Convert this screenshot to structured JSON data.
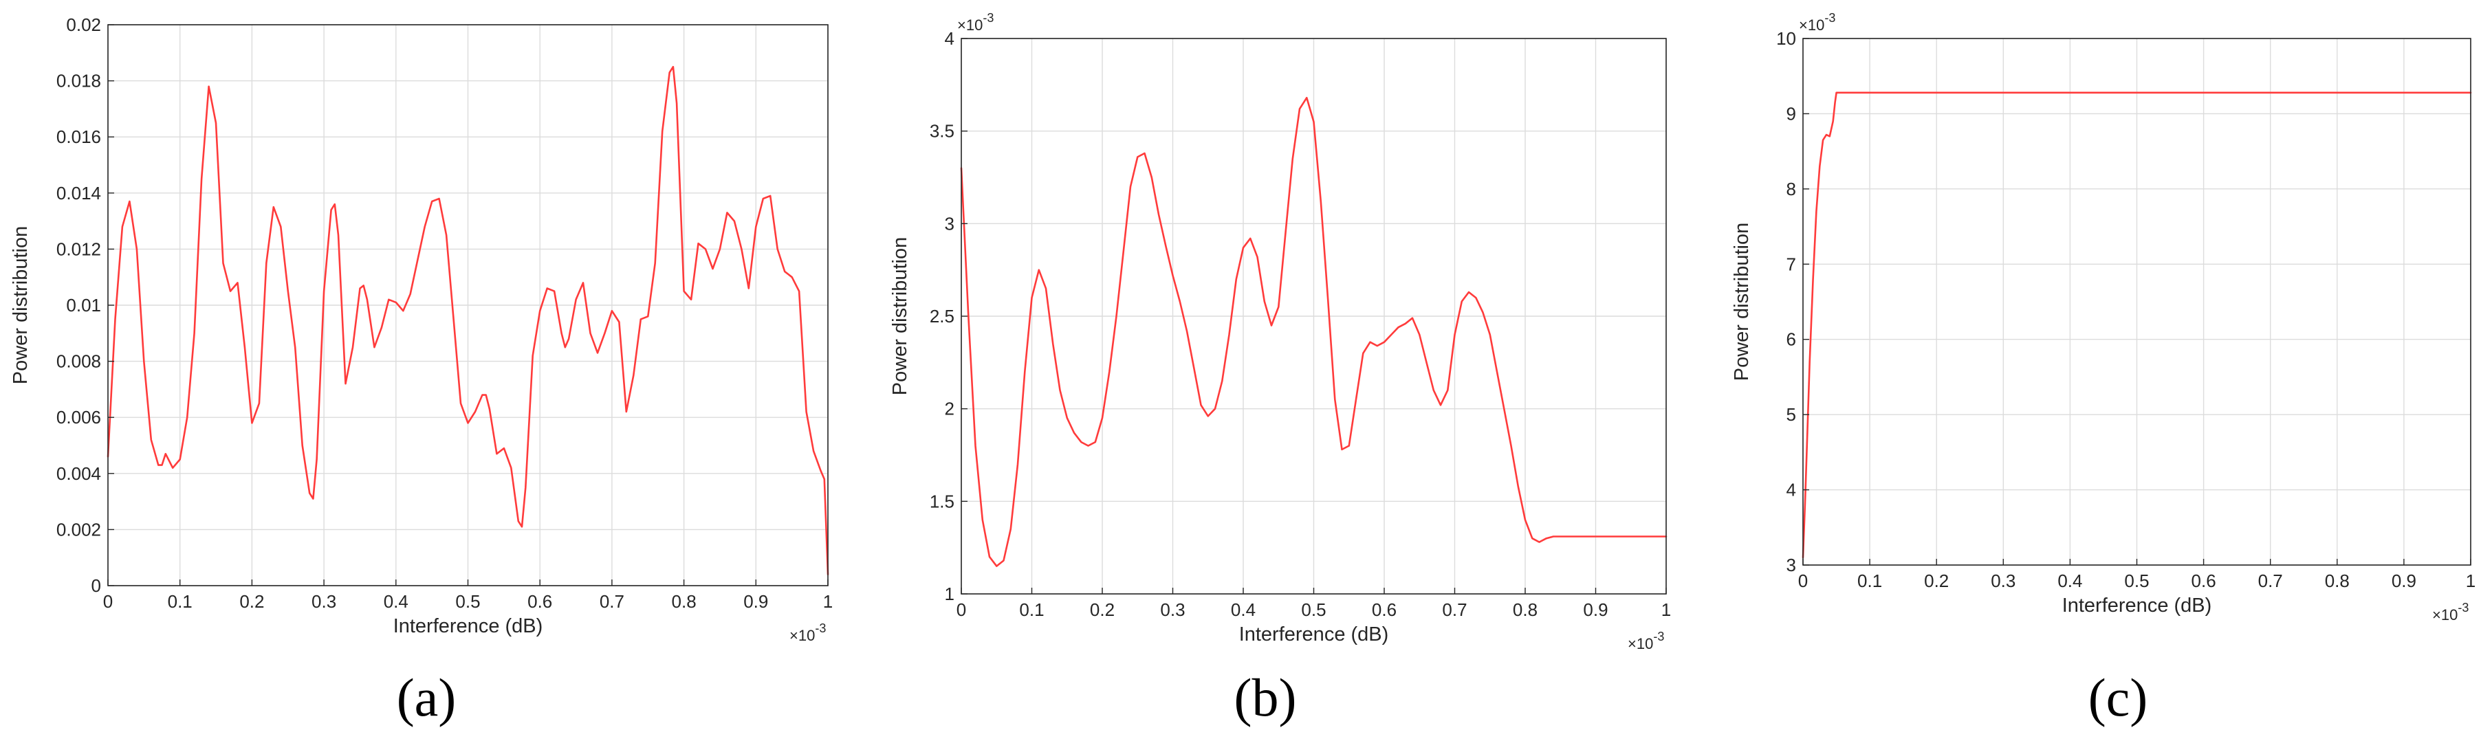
{
  "chart_data": [
    {
      "type": "line",
      "panel_label": "(a)",
      "xlabel": "Interference (dB)",
      "ylabel": "Power distribution",
      "x_exponent_label": "×10",
      "x_exponent": "-3",
      "y_exponent": "",
      "xlim": [
        0,
        1
      ],
      "ylim": [
        0,
        0.02
      ],
      "xticks": [
        "0",
        "0.1",
        "0.2",
        "0.3",
        "0.4",
        "0.5",
        "0.6",
        "0.7",
        "0.8",
        "0.9",
        "1"
      ],
      "yticks": [
        "0",
        "0.002",
        "0.004",
        "0.006",
        "0.008",
        "0.01",
        "0.012",
        "0.014",
        "0.016",
        "0.018",
        "0.02"
      ],
      "grid": true,
      "line_color": "#ff3b3b",
      "series": [
        {
          "x": [
            0,
            0.01,
            0.02,
            0.03,
            0.04,
            0.05,
            0.06,
            0.07,
            0.075,
            0.08,
            0.09,
            0.1,
            0.11,
            0.12,
            0.13,
            0.14,
            0.15,
            0.16,
            0.17,
            0.18,
            0.19,
            0.2,
            0.21,
            0.22,
            0.23,
            0.24,
            0.25,
            0.26,
            0.27,
            0.28,
            0.285,
            0.29,
            0.3,
            0.31,
            0.315,
            0.32,
            0.33,
            0.34,
            0.35,
            0.355,
            0.36,
            0.37,
            0.38,
            0.39,
            0.4,
            0.41,
            0.42,
            0.43,
            0.44,
            0.45,
            0.46,
            0.47,
            0.48,
            0.49,
            0.5,
            0.51,
            0.52,
            0.525,
            0.53,
            0.54,
            0.55,
            0.56,
            0.57,
            0.575,
            0.58,
            0.59,
            0.6,
            0.61,
            0.62,
            0.63,
            0.635,
            0.64,
            0.65,
            0.66,
            0.67,
            0.68,
            0.69,
            0.7,
            0.71,
            0.72,
            0.73,
            0.74,
            0.75,
            0.76,
            0.77,
            0.78,
            0.785,
            0.79,
            0.8,
            0.81,
            0.82,
            0.83,
            0.84,
            0.85,
            0.86,
            0.87,
            0.88,
            0.89,
            0.9,
            0.91,
            0.92,
            0.93,
            0.94,
            0.95,
            0.96,
            0.97,
            0.98,
            0.99,
            0.995,
            1.0
          ],
          "y": [
            0.0046,
            0.0095,
            0.0128,
            0.0137,
            0.012,
            0.008,
            0.0052,
            0.0043,
            0.0043,
            0.0047,
            0.0042,
            0.0045,
            0.006,
            0.009,
            0.0145,
            0.0178,
            0.0165,
            0.0115,
            0.0105,
            0.0108,
            0.0085,
            0.0058,
            0.0065,
            0.0115,
            0.0135,
            0.0128,
            0.0105,
            0.0085,
            0.005,
            0.0033,
            0.0031,
            0.0045,
            0.0105,
            0.0134,
            0.0136,
            0.0125,
            0.0072,
            0.0085,
            0.0106,
            0.0107,
            0.0102,
            0.0085,
            0.0092,
            0.0102,
            0.0101,
            0.0098,
            0.0104,
            0.0116,
            0.0128,
            0.0137,
            0.0138,
            0.0125,
            0.0095,
            0.0065,
            0.0058,
            0.0062,
            0.0068,
            0.0068,
            0.0063,
            0.0047,
            0.0049,
            0.0042,
            0.0023,
            0.0021,
            0.0035,
            0.0082,
            0.0098,
            0.0106,
            0.0105,
            0.009,
            0.0085,
            0.0088,
            0.0102,
            0.0108,
            0.009,
            0.0083,
            0.009,
            0.0098,
            0.0094,
            0.0062,
            0.0075,
            0.0095,
            0.0096,
            0.0115,
            0.0162,
            0.0183,
            0.0185,
            0.0172,
            0.0105,
            0.0102,
            0.0122,
            0.012,
            0.0113,
            0.012,
            0.0133,
            0.013,
            0.012,
            0.0106,
            0.0128,
            0.0138,
            0.0139,
            0.012,
            0.0112,
            0.011,
            0.0105,
            0.0062,
            0.0048,
            0.0041,
            0.0038,
            0.0004
          ]
        }
      ]
    },
    {
      "type": "line",
      "panel_label": "(b)",
      "xlabel": "Interference (dB)",
      "ylabel": "Power distribution",
      "x_exponent_label": "×10",
      "x_exponent": "-3",
      "y_exponent": "-3",
      "xlim": [
        0,
        1
      ],
      "ylim": [
        1,
        4
      ],
      "xticks": [
        "0",
        "0.1",
        "0.2",
        "0.3",
        "0.4",
        "0.5",
        "0.6",
        "0.7",
        "0.8",
        "0.9",
        "1"
      ],
      "yticks": [
        "1",
        "1.5",
        "2",
        "2.5",
        "3",
        "3.5",
        "4"
      ],
      "grid": true,
      "line_color": "#ff3b3b",
      "series": [
        {
          "x": [
            0,
            0.01,
            0.02,
            0.03,
            0.04,
            0.05,
            0.06,
            0.07,
            0.08,
            0.09,
            0.1,
            0.11,
            0.12,
            0.13,
            0.14,
            0.15,
            0.16,
            0.17,
            0.18,
            0.19,
            0.2,
            0.21,
            0.22,
            0.23,
            0.24,
            0.25,
            0.26,
            0.27,
            0.28,
            0.29,
            0.3,
            0.31,
            0.32,
            0.33,
            0.34,
            0.35,
            0.36,
            0.37,
            0.38,
            0.39,
            0.4,
            0.41,
            0.42,
            0.43,
            0.44,
            0.45,
            0.46,
            0.47,
            0.48,
            0.49,
            0.5,
            0.51,
            0.52,
            0.53,
            0.54,
            0.55,
            0.56,
            0.57,
            0.58,
            0.59,
            0.6,
            0.61,
            0.62,
            0.63,
            0.64,
            0.65,
            0.66,
            0.67,
            0.68,
            0.69,
            0.7,
            0.71,
            0.72,
            0.73,
            0.74,
            0.75,
            0.76,
            0.77,
            0.78,
            0.79,
            0.8,
            0.81,
            0.82,
            0.83,
            0.84,
            0.85,
            0.9,
            0.95,
            1.0
          ],
          "y": [
            3.3,
            2.5,
            1.8,
            1.4,
            1.2,
            1.15,
            1.18,
            1.35,
            1.7,
            2.2,
            2.6,
            2.75,
            2.65,
            2.35,
            2.1,
            1.95,
            1.87,
            1.82,
            1.8,
            1.82,
            1.95,
            2.2,
            2.5,
            2.85,
            3.2,
            3.36,
            3.38,
            3.25,
            3.05,
            2.88,
            2.72,
            2.58,
            2.42,
            2.22,
            2.02,
            1.96,
            2.0,
            2.15,
            2.4,
            2.7,
            2.87,
            2.92,
            2.82,
            2.58,
            2.45,
            2.55,
            2.95,
            3.35,
            3.62,
            3.68,
            3.55,
            3.12,
            2.6,
            2.05,
            1.78,
            1.8,
            2.05,
            2.3,
            2.36,
            2.34,
            2.36,
            2.4,
            2.44,
            2.46,
            2.49,
            2.4,
            2.25,
            2.1,
            2.02,
            2.1,
            2.4,
            2.58,
            2.63,
            2.6,
            2.52,
            2.4,
            2.2,
            2.0,
            1.8,
            1.58,
            1.4,
            1.3,
            1.28,
            1.3,
            1.31,
            1.31,
            1.31,
            1.31,
            1.31
          ]
        }
      ]
    },
    {
      "type": "line",
      "panel_label": "(c)",
      "xlabel": "Interference (dB)",
      "ylabel": "Power distribution",
      "x_exponent_label": "×10",
      "x_exponent": "-3",
      "y_exponent": "-3",
      "xlim": [
        0,
        1
      ],
      "ylim": [
        3,
        10
      ],
      "xticks": [
        "0",
        "0.1",
        "0.2",
        "0.3",
        "0.4",
        "0.5",
        "0.6",
        "0.7",
        "0.8",
        "0.9",
        "1"
      ],
      "yticks": [
        "3",
        "4",
        "5",
        "6",
        "7",
        "8",
        "9",
        "10"
      ],
      "grid": true,
      "line_color": "#ff3b3b",
      "series": [
        {
          "x": [
            0,
            0.003,
            0.006,
            0.01,
            0.015,
            0.02,
            0.025,
            0.03,
            0.035,
            0.04,
            0.045,
            0.048,
            0.05,
            0.06,
            0.2,
            0.4,
            0.6,
            0.8,
            1.0
          ],
          "y": [
            3.1,
            3.8,
            4.6,
            5.7,
            6.8,
            7.7,
            8.3,
            8.65,
            8.72,
            8.7,
            8.9,
            9.15,
            9.28,
            9.28,
            9.28,
            9.28,
            9.28,
            9.28,
            9.28
          ]
        }
      ]
    }
  ]
}
